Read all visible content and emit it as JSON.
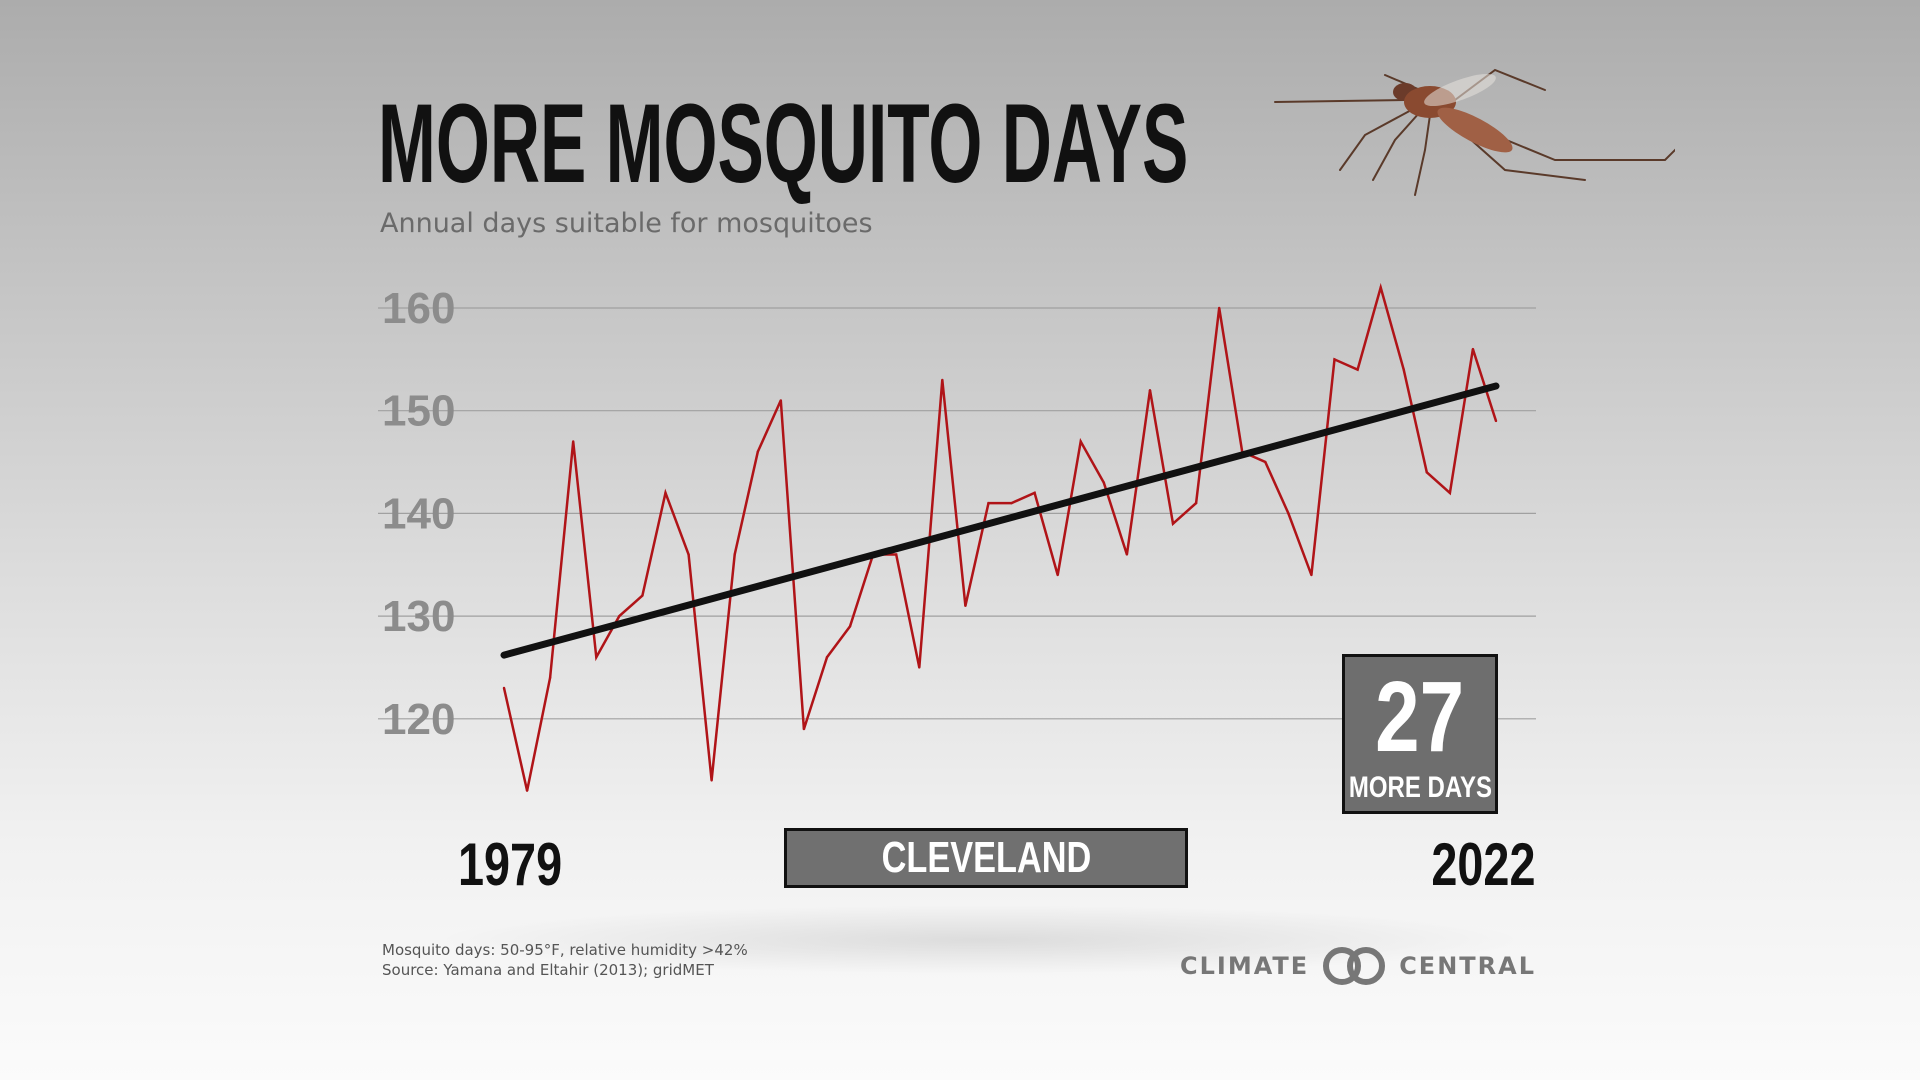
{
  "title": "MORE MOSQUITO DAYS",
  "subtitle": "Annual days suitable for mosquitoes",
  "city": "CLEVELAND",
  "stat": {
    "value": "27",
    "label": "MORE DAYS"
  },
  "years": {
    "start": "1979",
    "end": "2022"
  },
  "notes": {
    "definition": "Mosquito days: 50-95°F, relative humidity >42%",
    "source": "Source: Yamana and Eltahir (2013); gridMET"
  },
  "logo": {
    "left": "CLIMATE",
    "right": "CENTRAL",
    "icon": "climate-central-logo-icon"
  },
  "colors": {
    "series": "#b01418",
    "trend": "#111111",
    "grid": "#a0a0a0",
    "tick": "#8c8c8c",
    "box": "#6e6e6e"
  },
  "chart_data": {
    "type": "line",
    "title": "MORE MOSQUITO DAYS",
    "subtitle": "Annual days suitable for mosquitoes",
    "xlabel": "",
    "ylabel": "",
    "ylim": [
      110,
      165
    ],
    "yticks": [
      120,
      130,
      140,
      150,
      160
    ],
    "grid": true,
    "x": [
      1979,
      1980,
      1981,
      1982,
      1983,
      1984,
      1985,
      1986,
      1987,
      1988,
      1989,
      1990,
      1991,
      1992,
      1993,
      1994,
      1995,
      1996,
      1997,
      1998,
      1999,
      2000,
      2001,
      2002,
      2003,
      2004,
      2005,
      2006,
      2007,
      2008,
      2009,
      2010,
      2011,
      2012,
      2013,
      2014,
      2015,
      2016,
      2017,
      2018,
      2019,
      2020,
      2021,
      2022
    ],
    "series": [
      {
        "values": [
          123,
          113,
          124,
          147,
          126,
          130,
          132,
          142,
          136,
          114,
          136,
          146,
          151,
          119,
          126,
          129,
          136,
          136,
          125,
          153,
          131,
          141,
          141,
          142,
          134,
          147,
          143,
          136,
          152,
          139,
          141,
          160,
          146,
          145,
          140,
          134,
          155,
          154,
          162,
          154,
          144,
          142,
          156,
          149
        ]
      }
    ],
    "trend": {
      "start": [
        1979,
        126.2
      ],
      "end": [
        2022,
        152.4
      ]
    }
  }
}
